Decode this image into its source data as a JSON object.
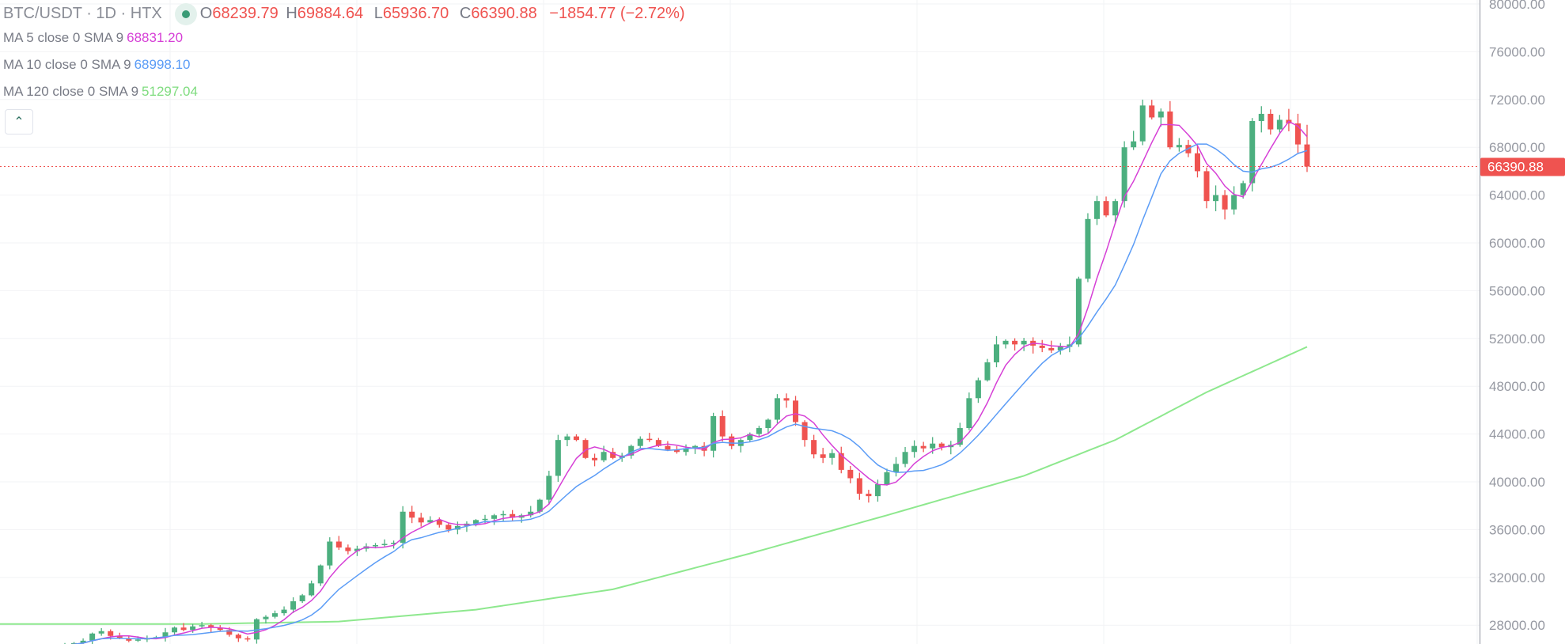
{
  "header": {
    "title": "BTC/USDT · 1D · HTX",
    "open_label": "O",
    "open": "68239.79",
    "high_label": "H",
    "high": "69884.64",
    "low_label": "L",
    "low": "65936.70",
    "close_label": "C",
    "close": "66390.88",
    "change": "−1854.77 (−2.72%)"
  },
  "indicators": [
    {
      "label": "MA 5 close 0 SMA 9",
      "value": "68831.20",
      "color": "#d63fd6"
    },
    {
      "label": "MA 10 close 0 SMA 9",
      "value": "68998.10",
      "color": "#5b9cf6"
    },
    {
      "label": "MA 120 close 0 SMA 9",
      "value": "51297.04",
      "color": "#8ee88e"
    }
  ],
  "collapse_icon": "chevron-up-icon",
  "colors": {
    "up": "#4caf7f",
    "down": "#ef5350",
    "grid": "#f2f3f5",
    "axis": "#b2b5be"
  },
  "chart_data": {
    "type": "candlestick",
    "title": "BTC/USDT · 1D · HTX",
    "ylim": [
      26000,
      80000
    ],
    "yticks": [
      "80000.00",
      "76000.00",
      "72000.00",
      "68000.00",
      "64000.00",
      "60000.00",
      "56000.00",
      "52000.00",
      "48000.00",
      "44000.00",
      "40000.00",
      "36000.00",
      "32000.00",
      "28000.00"
    ],
    "ytick_values": [
      80000,
      76000,
      72000,
      68000,
      64000,
      60000,
      56000,
      52000,
      48000,
      44000,
      40000,
      36000,
      32000,
      28000
    ],
    "last_price": 66390.88,
    "last_price_label": "66390.88",
    "last_open": 68239.79,
    "last_high": 69884.64,
    "last_low": 65936.7,
    "closes": [
      26300,
      26500,
      26700,
      27300,
      27500,
      27100,
      26900,
      26700,
      26800,
      26900,
      27000,
      27400,
      27800,
      27600,
      27900,
      28000,
      27800,
      27600,
      27200,
      26900,
      26800,
      28500,
      28700,
      29000,
      29300,
      30000,
      30500,
      31500,
      33000,
      35000,
      34500,
      34200,
      34400,
      34600,
      34700,
      34800,
      34900,
      37500,
      37000,
      36600,
      36800,
      36400,
      36000,
      36300,
      36500,
      36800,
      36900,
      37200,
      37300,
      37000,
      37200,
      37500,
      38500,
      40500,
      43500,
      43800,
      43500,
      42000,
      41800,
      42500,
      42000,
      42200,
      43000,
      43600,
      43500,
      43000,
      42700,
      42500,
      42800,
      43000,
      42600,
      45500,
      43800,
      43000,
      43500,
      44000,
      44500,
      45200,
      47000,
      46800,
      45000,
      43500,
      42300,
      42000,
      42400,
      41000,
      40300,
      39000,
      38800,
      39800,
      40800,
      41500,
      42500,
      43000,
      42800,
      43200,
      42900,
      43100,
      44500,
      47000,
      48500,
      50000,
      51500,
      51800,
      51500,
      51800,
      51400,
      51200,
      51000,
      51300,
      51500,
      57000,
      62000,
      63500,
      62300,
      63500,
      68000,
      68500,
      71500,
      70500,
      71000,
      68000,
      68200,
      67500,
      66000,
      63500,
      64000,
      62800,
      64000,
      65000,
      70200,
      70800,
      69500,
      70300,
      70000,
      68240,
      66390.88
    ],
    "ma120_samples": {
      "index": [
        0,
        15,
        30,
        45,
        60,
        75,
        90,
        105,
        115,
        125,
        136
      ],
      "value": [
        28100,
        28100,
        28300,
        29300,
        31000,
        34000,
        37200,
        40500,
        43500,
        47500,
        51297.04
      ]
    },
    "series": [
      {
        "name": "MA 5",
        "color": "#d63fd6"
      },
      {
        "name": "MA 10",
        "color": "#5b9cf6"
      },
      {
        "name": "MA 120",
        "color": "#8ee88e"
      }
    ]
  }
}
